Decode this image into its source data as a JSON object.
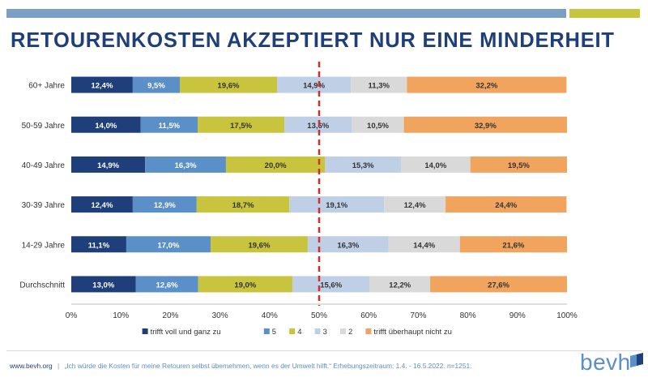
{
  "title": "RETOURENKOSTEN AKZEPTIERT NUR EINE MINDERHEIT",
  "footer": {
    "url": "www.bevh.org",
    "separator": "|",
    "note": "„Ich würde die Kosten für meine Retouren selbst übernehmen, wenn es der Umwelt hilft.“ Erhebungszeitraum: 1.4. - 16.5.2022. n=1251."
  },
  "logo": {
    "text": "bevh"
  },
  "colors": {
    "title": "#1f3f7a",
    "topbar_blue": "#7b9ec4",
    "topbar_yellow": "#c8c43d",
    "reference_line": "#d62b2b"
  },
  "chart_data": {
    "type": "bar",
    "orientation": "horizontal",
    "stacked": "percent",
    "categories": [
      "60+ Jahre",
      "50-59 Jahre",
      "40-49 Jahre",
      "30-39 Jahre",
      "14-29 Jahre",
      "Durchschnitt"
    ],
    "series": [
      {
        "name": "trifft voll und ganz zu",
        "color": "#1f3f7a",
        "label_color": "#ffffff",
        "values": [
          12.4,
          14.0,
          14.9,
          12.4,
          11.1,
          13.0
        ]
      },
      {
        "name": "5",
        "color": "#5b8fc7",
        "label_color": "#ffffff",
        "values": [
          9.5,
          11.5,
          16.3,
          12.9,
          17.0,
          12.6
        ]
      },
      {
        "name": "4",
        "color": "#c8c43d",
        "label_color": "#333333",
        "values": [
          19.6,
          17.5,
          20.0,
          18.7,
          19.6,
          19.0
        ]
      },
      {
        "name": "3",
        "color": "#bfcfe6",
        "label_color": "#333333",
        "values": [
          14.9,
          13.6,
          15.3,
          19.1,
          16.3,
          15.6
        ]
      },
      {
        "name": "2",
        "color": "#d9d9d9",
        "label_color": "#333333",
        "values": [
          11.3,
          10.5,
          14.0,
          12.4,
          14.4,
          12.2
        ]
      },
      {
        "name": "trifft überhaupt nicht zu",
        "color": "#f0a45e",
        "label_color": "#333333",
        "values": [
          32.2,
          32.9,
          19.5,
          24.4,
          21.6,
          27.6
        ]
      }
    ],
    "data_labels": [
      [
        "12,4%",
        "9,5%",
        "19,6%",
        "14,9%",
        "11,3%",
        "32,2%"
      ],
      [
        "14,0%",
        "11,5%",
        "17,5%",
        "13,6%",
        "10,5%",
        "32,9%"
      ],
      [
        "14,9%",
        "16,3%",
        "20,0%",
        "15,3%",
        "14,0%",
        "19,5%"
      ],
      [
        "12,4%",
        "12,9%",
        "18,7%",
        "19,1%",
        "12,4%",
        "24,4%"
      ],
      [
        "11,1%",
        "17,0%",
        "19,6%",
        "16,3%",
        "14,4%",
        "21,6%"
      ],
      [
        "13,0%",
        "12,6%",
        "19,0%",
        "15,6%",
        "12,2%",
        "27,6%"
      ]
    ],
    "x_ticks": [
      "0%",
      "10%",
      "20%",
      "30%",
      "40%",
      "50%",
      "60%",
      "70%",
      "80%",
      "90%",
      "100%"
    ],
    "xlim": [
      0,
      100
    ],
    "reference_line": 50,
    "grid": false,
    "legend_position": "bottom"
  }
}
